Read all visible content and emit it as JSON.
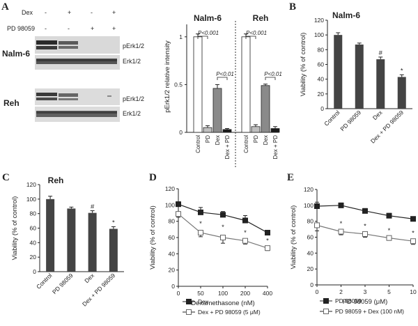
{
  "panel_labels": {
    "a": "A",
    "b": "B",
    "c": "C",
    "d": "D",
    "e": "E"
  },
  "western": {
    "treatments": [
      {
        "label": "Dex",
        "signs": [
          "-",
          "+",
          "-",
          "+"
        ]
      },
      {
        "label": "PD 98059",
        "signs": [
          "-",
          "-",
          "+",
          "+"
        ]
      }
    ],
    "cell_lines": [
      "Nalm-6",
      "Reh"
    ],
    "bands": [
      "pErk1/2",
      "Erk1/2"
    ]
  },
  "colors": {
    "open": "#ffffff",
    "pd": "#bfbfbf",
    "dex": "#8a8a8a",
    "combo": "#1a1a1a",
    "bar_dark": "#444444",
    "line": "#333333"
  },
  "chart_data": [
    {
      "id": "A-Nalm-6",
      "type": "bar",
      "title": "Nalm-6",
      "ylabel": "pErk1/2 relative intensity",
      "yticks": [
        "0",
        "0.5",
        "1"
      ],
      "ylim": [
        0,
        1.13
      ],
      "categories": [
        "Control",
        "PD",
        "Dex",
        "Dex + PD"
      ],
      "values": [
        1.0,
        0.05,
        0.46,
        0.03
      ],
      "errors": [
        0.03,
        0.02,
        0.04,
        0.01
      ],
      "annotations": [
        "P<0.001",
        "P<0.01"
      ]
    },
    {
      "id": "A-Reh",
      "type": "bar",
      "title": "Reh",
      "ylabel": "",
      "ylim": [
        0,
        1.13
      ],
      "categories": [
        "Control",
        "PD",
        "Dex",
        "Dex + PD"
      ],
      "values": [
        1.0,
        0.06,
        0.49,
        0.04
      ],
      "errors": [
        0.03,
        0.02,
        0.015,
        0.02
      ],
      "annotations": [
        "P<0.001",
        "P<0.01"
      ]
    },
    {
      "id": "B",
      "type": "bar",
      "title": "Nalm-6",
      "ylabel": "Viability  (% of control)",
      "ylim": [
        0,
        120
      ],
      "yticks": [
        "0",
        "20",
        "40",
        "60",
        "80",
        "100",
        "120"
      ],
      "categories": [
        "Control",
        "PD 98059",
        "Dex",
        "Dex + PD 98059"
      ],
      "values": [
        100,
        87,
        67,
        43
      ],
      "errors": [
        3,
        2,
        3,
        3
      ],
      "marks": [
        "",
        "",
        "#",
        "*"
      ]
    },
    {
      "id": "C",
      "type": "bar",
      "title": "Reh",
      "ylabel": "Viability  (% of control)",
      "ylim": [
        0,
        120
      ],
      "yticks": [
        "0",
        "20",
        "40",
        "60",
        "80",
        "100",
        "120"
      ],
      "categories": [
        "Control",
        "PD 98059",
        "Dex",
        "Dex + PD 98059"
      ],
      "values": [
        100,
        87,
        81,
        59
      ],
      "errors": [
        4,
        2,
        3,
        3
      ],
      "marks": [
        "",
        "",
        "#",
        "*"
      ]
    },
    {
      "id": "D",
      "type": "line",
      "xlabel": "Dexamethasone  (nM)",
      "ylabel": "Viability  (% of control)",
      "ylim": [
        0,
        120
      ],
      "yticks": [
        "0",
        "20",
        "40",
        "60",
        "80",
        "100",
        "120"
      ],
      "x_categories": [
        "0",
        "50",
        "100",
        "200",
        "400"
      ],
      "series": [
        {
          "name": "Dex",
          "values": [
            101,
            91,
            88,
            81,
            66
          ],
          "errors": [
            3,
            6,
            4,
            6,
            3
          ],
          "marker": "filled"
        },
        {
          "name": "Dex + PD 98059 (5 μM)",
          "values": [
            89,
            66,
            60,
            56,
            47
          ],
          "errors": [
            4,
            5,
            7,
            4,
            3
          ],
          "marker": "open"
        }
      ],
      "marks": [
        "",
        "*",
        "*",
        "*",
        "*"
      ]
    },
    {
      "id": "E",
      "type": "line",
      "xlabel": "PD 98059  (μM)",
      "ylabel": "Viability  (% of control)",
      "ylim": [
        0,
        120
      ],
      "yticks": [
        "0",
        "20",
        "40",
        "60",
        "80",
        "100",
        "120"
      ],
      "x_categories": [
        "0",
        "2",
        "3",
        "5",
        "10"
      ],
      "series": [
        {
          "name": "PD 98059",
          "values": [
            99,
            100,
            93,
            87,
            83
          ],
          "errors": [
            5,
            3,
            3,
            3,
            2
          ],
          "marker": "filled"
        },
        {
          "name": "PD 98059 + Dex (100 nM)",
          "values": [
            75,
            67,
            64,
            59,
            55
          ],
          "errors": [
            7,
            4,
            4,
            3,
            4
          ],
          "marker": "open"
        }
      ],
      "marks": [
        "",
        "*",
        "*",
        "*",
        "*"
      ]
    }
  ]
}
